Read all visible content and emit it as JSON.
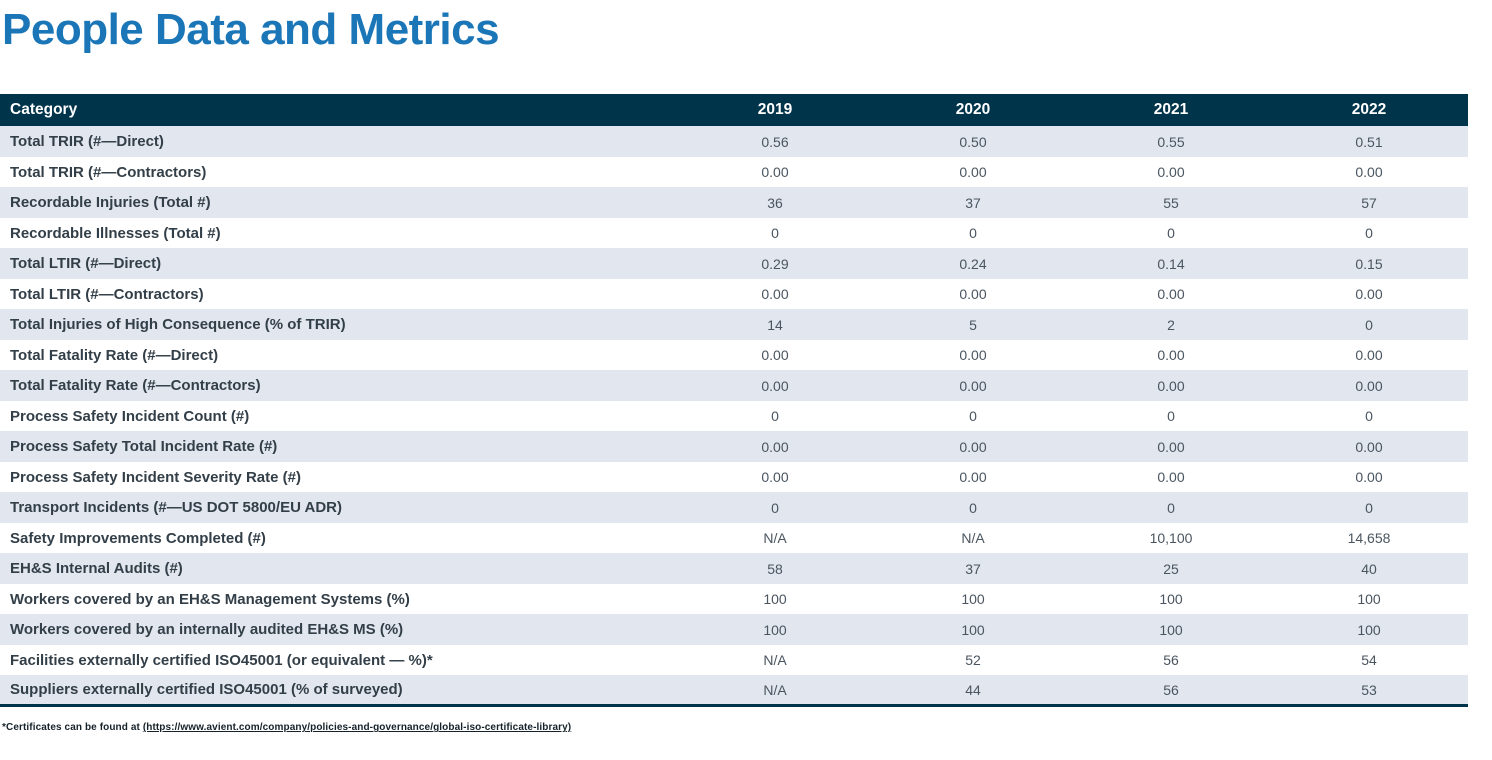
{
  "page": {
    "title": "People Data and Metrics",
    "colors": {
      "title_blue": "#1b76b8",
      "header_navy": "#00344b",
      "row_stripe": "#e2e6ef",
      "category_text": "#333f48",
      "value_text": "#4a5560"
    }
  },
  "table": {
    "columns": [
      "Category",
      "2019",
      "2020",
      "2021",
      "2022"
    ],
    "rows": [
      {
        "category": "Total TRIR (#—Direct)",
        "values": [
          "0.56",
          "0.50",
          "0.55",
          "0.51"
        ]
      },
      {
        "category": "Total TRIR (#—Contractors)",
        "values": [
          "0.00",
          "0.00",
          "0.00",
          "0.00"
        ]
      },
      {
        "category": "Recordable Injuries (Total #)",
        "values": [
          "36",
          "37",
          "55",
          "57"
        ]
      },
      {
        "category": "Recordable Illnesses (Total #)",
        "values": [
          "0",
          "0",
          "0",
          "0"
        ]
      },
      {
        "category": "Total LTIR (#—Direct)",
        "values": [
          "0.29",
          "0.24",
          "0.14",
          "0.15"
        ]
      },
      {
        "category": "Total LTIR (#—Contractors)",
        "values": [
          "0.00",
          "0.00",
          "0.00",
          "0.00"
        ]
      },
      {
        "category": "Total Injuries of High Consequence (% of TRIR)",
        "values": [
          "14",
          "5",
          "2",
          "0"
        ]
      },
      {
        "category": "Total Fatality Rate (#—Direct)",
        "values": [
          "0.00",
          "0.00",
          "0.00",
          "0.00"
        ]
      },
      {
        "category": "Total Fatality Rate (#—Contractors)",
        "values": [
          "0.00",
          "0.00",
          "0.00",
          "0.00"
        ]
      },
      {
        "category": "Process Safety Incident Count (#)",
        "values": [
          "0",
          "0",
          "0",
          "0"
        ]
      },
      {
        "category": "Process Safety Total Incident Rate (#)",
        "values": [
          "0.00",
          "0.00",
          "0.00",
          "0.00"
        ]
      },
      {
        "category": "Process Safety Incident Severity Rate (#)",
        "values": [
          "0.00",
          "0.00",
          "0.00",
          "0.00"
        ]
      },
      {
        "category": "Transport Incidents (#—US DOT 5800/EU ADR)",
        "values": [
          "0",
          "0",
          "0",
          "0"
        ]
      },
      {
        "category": "Safety Improvements Completed (#)",
        "values": [
          "N/A",
          "N/A",
          "10,100",
          "14,658"
        ]
      },
      {
        "category": "EH&S Internal Audits (#)",
        "values": [
          "58",
          "37",
          "25",
          "40"
        ]
      },
      {
        "category": "Workers covered by an EH&S Management Systems (%)",
        "values": [
          "100",
          "100",
          "100",
          "100"
        ]
      },
      {
        "category": "Workers covered by an internally audited EH&S MS (%)",
        "values": [
          "100",
          "100",
          "100",
          "100"
        ]
      },
      {
        "category": "Facilities externally certified ISO45001 (or equivalent — %)*",
        "values": [
          "N/A",
          "52",
          "56",
          "54"
        ]
      },
      {
        "category": "Suppliers externally certified ISO45001 (% of surveyed)",
        "values": [
          "N/A",
          "44",
          "56",
          "53"
        ]
      }
    ]
  },
  "footnote": {
    "prefix": "*Certificates can be found at ",
    "link": "(https://www.avient.com/company/policies-and-governance/global-iso-certificate-library)"
  }
}
